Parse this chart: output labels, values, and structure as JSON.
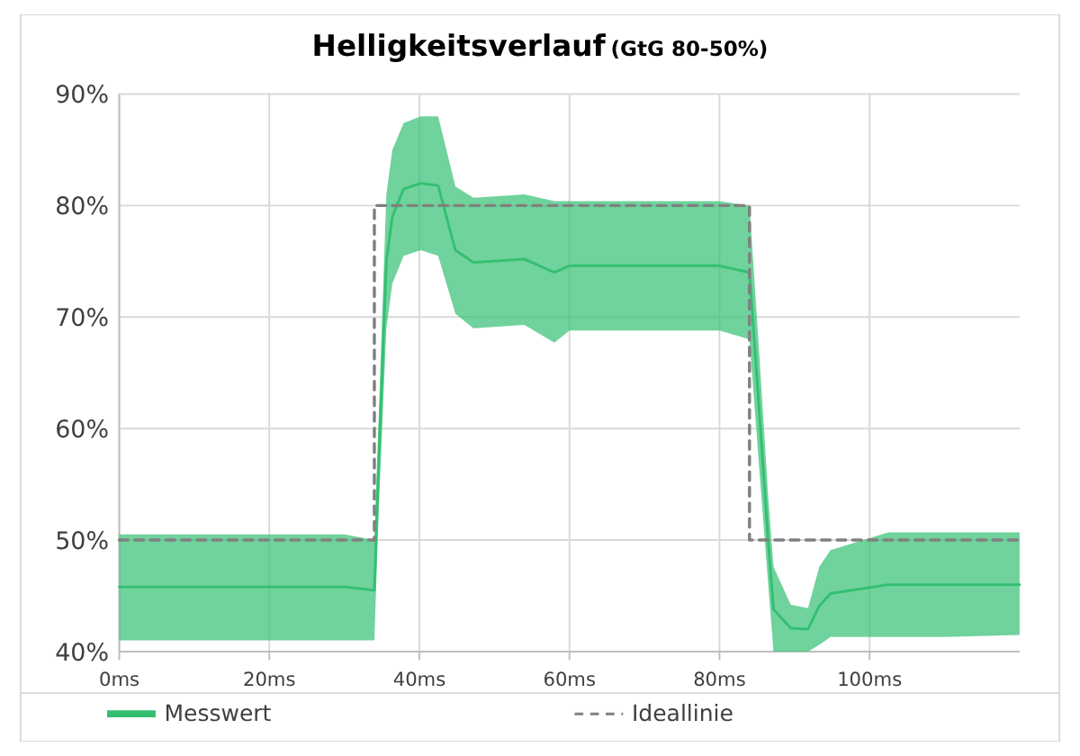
{
  "chart_data": {
    "type": "line",
    "title": "Helligkeitsverlauf",
    "subtitle": "(GtG 80-50%)",
    "xlim": [
      0,
      120
    ],
    "ylim": [
      40,
      90
    ],
    "xticks": [
      {
        "value": 0,
        "label": "0ms"
      },
      {
        "value": 20,
        "label": "20ms"
      },
      {
        "value": 40,
        "label": "40ms"
      },
      {
        "value": 60,
        "label": "60ms"
      },
      {
        "value": 80,
        "label": "80ms"
      },
      {
        "value": 100,
        "label": "100ms"
      }
    ],
    "yticks": [
      {
        "value": 40,
        "label": "40%"
      },
      {
        "value": 50,
        "label": "50%"
      },
      {
        "value": 60,
        "label": "60%"
      },
      {
        "value": 70,
        "label": "70%"
      },
      {
        "value": 80,
        "label": "80%"
      },
      {
        "value": 90,
        "label": "90%"
      }
    ],
    "grid": true,
    "legend": "bottom",
    "marker": "none",
    "series": [
      {
        "name": "Messwert",
        "color": "#33bf72",
        "line_style": "solid",
        "x": [
          0,
          10,
          20,
          30,
          34,
          34.6,
          35.6,
          36.4,
          37.9,
          40.2,
          42.5,
          44.8,
          47.2,
          54,
          58,
          60,
          70,
          80,
          84,
          85.3,
          86.5,
          87.2,
          89.5,
          91.8,
          93.3,
          94.8,
          102.5,
          110,
          120
        ],
        "values": [
          45.8,
          45.8,
          45.8,
          45.8,
          45.5,
          57.3,
          75,
          79,
          81.5,
          82,
          81.8,
          76,
          74.9,
          75.2,
          74,
          74.6,
          74.6,
          74.6,
          74,
          61.6,
          49.9,
          43.8,
          42.1,
          42,
          44.1,
          45.2,
          46,
          46,
          46
        ],
        "lower": [
          41,
          41,
          41,
          41,
          41,
          53,
          69,
          73,
          75.5,
          76,
          75.5,
          70.3,
          69,
          69.3,
          67.7,
          68.8,
          68.8,
          68.8,
          68,
          56.4,
          46,
          40,
          40,
          40,
          40.6,
          41.3,
          41.3,
          41.3,
          41.5
        ],
        "upper": [
          50.5,
          50.5,
          50.5,
          50.5,
          50,
          61.5,
          81,
          85,
          87.4,
          88,
          88,
          81.7,
          80.7,
          81,
          80.4,
          80.4,
          80.4,
          80.4,
          80,
          66.7,
          53.8,
          47.6,
          44.2,
          43.9,
          47.6,
          49.1,
          50.7,
          50.7,
          50.7
        ]
      },
      {
        "name": "Ideallinie",
        "color": "#808080",
        "line_style": "dashed",
        "x": [
          0,
          34,
          34,
          84,
          84,
          120
        ],
        "values": [
          50,
          50,
          80,
          80,
          50,
          50
        ]
      }
    ]
  }
}
